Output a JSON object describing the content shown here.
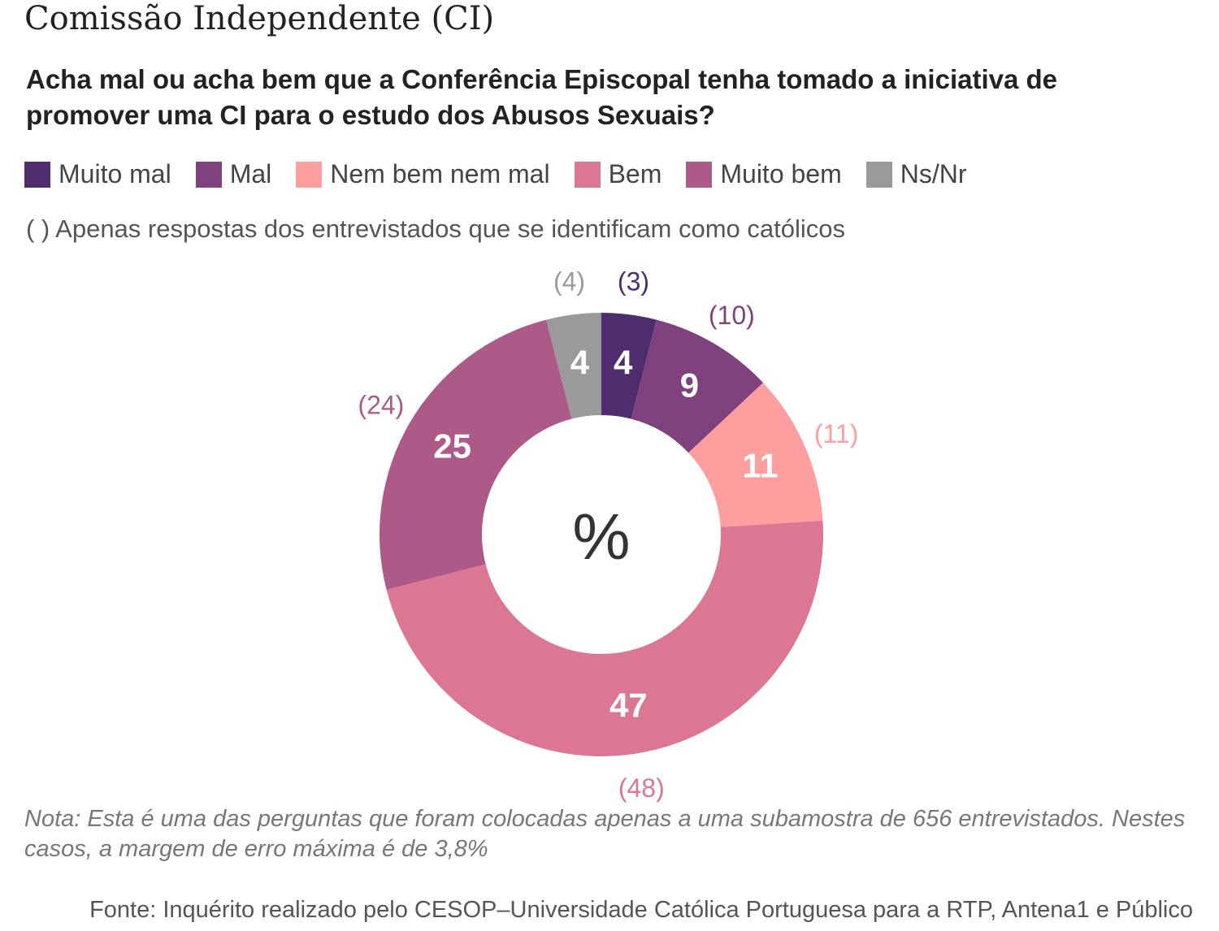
{
  "title": "Comissão Independente (CI)",
  "subtitle": "Acha mal ou acha bem que a Conferência Episcopal tenha tomado a iniciativa de promover uma CI para o estudo dos Abusos Sexuais?",
  "catholic_note": "( ) Apenas respostas dos entrevistados que se identificam como católicos",
  "footnote": "Nota: Esta é uma das perguntas que foram colocadas apenas a uma subamostra de 656 entrevistados. Nestes casos, a margem de erro máxima é de 3,8%",
  "source": "Fonte: Inquérito realizado pelo CESOP–Universidade Católica Portuguesa para a RTP, Antena1 e Público",
  "chart_data": {
    "type": "pie",
    "donut": true,
    "center_label": "%",
    "legend_position": "top",
    "categories": [
      "Muito mal",
      "Mal",
      "Nem bem nem mal",
      "Bem",
      "Muito bem",
      "Ns/Nr"
    ],
    "values": [
      4,
      9,
      11,
      47,
      25,
      4
    ],
    "catholic_values": [
      "(3)",
      "(10)",
      "(11)",
      "(48)",
      "(24)",
      "(4)"
    ],
    "colors": [
      "#4f2c6e",
      "#80417f",
      "#ff9e9e",
      "#db7693",
      "#ad5a88",
      "#9a9a9a"
    ]
  }
}
